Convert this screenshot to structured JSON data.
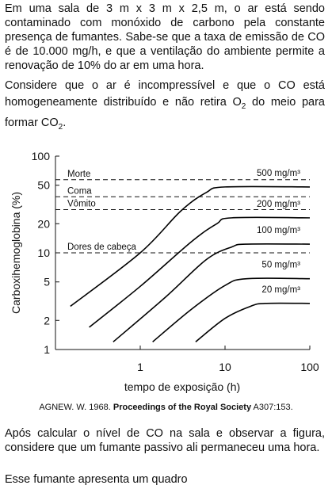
{
  "intro": "Em uma sala de 3 m x 3 m x 2,5 m, o ar está sendo contaminado com monóxido de carbono pela constante presença de fumantes. Sabe-se que a taxa de emissão de CO é de 10.000 mg/h, e que a ventilação do ambiente permite a renovação de 10% do ar em uma hora.",
  "assumption": [
    "Considere que o ar é incompressível e que o CO está homogeneamente distribuído e não retira O",
    "2",
    " do meio para formar CO",
    "2",
    "."
  ],
  "chart_data": {
    "type": "line",
    "xlabel": "tempo de exposição (h)",
    "ylabel": "Carboxihemoglobina (%)",
    "log_x": true,
    "log_y": true,
    "xlim": [
      0.1,
      100
    ],
    "xticks": [
      1,
      10,
      100
    ],
    "ylim": [
      1,
      100
    ],
    "yticks": [
      1,
      2,
      5,
      10,
      20,
      50,
      100
    ],
    "thresholds": [
      {
        "label": "Morte",
        "value": 57
      },
      {
        "label": "Coma",
        "value": 38
      },
      {
        "label": "Vômito",
        "value": 28
      },
      {
        "label": "Dores de cabeça",
        "value": 10
      }
    ],
    "series": [
      {
        "name": "500 mg/m³",
        "color": "#000000",
        "x": [
          0.15,
          1,
          3,
          6,
          10,
          100
        ],
        "values": [
          2.8,
          10,
          27,
          42,
          48,
          48
        ]
      },
      {
        "name": "200 mg/m³",
        "color": "#000000",
        "x": [
          0.25,
          1,
          4,
          8,
          12,
          100
        ],
        "values": [
          1.7,
          4.5,
          13,
          20,
          23,
          23
        ]
      },
      {
        "name": "100 mg/m³",
        "color": "#000000",
        "x": [
          0.48,
          2,
          6,
          12,
          18,
          100
        ],
        "values": [
          1.2,
          3.5,
          8.5,
          11.5,
          12.3,
          12.3
        ]
      },
      {
        "name": "50 mg/m³",
        "color": "#000000",
        "x": [
          1.4,
          4,
          10,
          18,
          100
        ],
        "values": [
          1.2,
          2.6,
          4.6,
          5.4,
          5.4
        ]
      },
      {
        "name": "20 mg/m³",
        "color": "#000000",
        "x": [
          4.5,
          10,
          20,
          30,
          100
        ],
        "values": [
          1.2,
          2.1,
          2.8,
          3,
          3
        ]
      }
    ]
  },
  "citation": {
    "author": "AGNEW. W. 1968.",
    "journal": "Proceedings of the Royal Society",
    "ref": "A307:153."
  },
  "question": "Após calcular o nível de CO na sala e observar a figura, considere que um fumante passivo ali permaneceu uma hora.",
  "prompt": "Esse fumante apresenta um quadro"
}
